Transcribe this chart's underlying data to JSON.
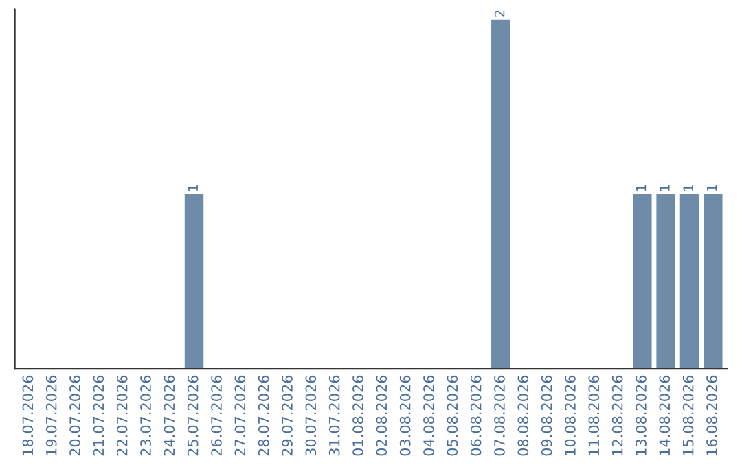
{
  "chart_data": {
    "type": "bar",
    "categories": [
      "18.07.2026",
      "19.07.2026",
      "20.07.2026",
      "21.07.2026",
      "22.07.2026",
      "23.07.2026",
      "24.07.2026",
      "25.07.2026",
      "26.07.2026",
      "27.07.2026",
      "28.07.2026",
      "29.07.2026",
      "30.07.2026",
      "31.07.2026",
      "01.08.2026",
      "02.08.2026",
      "03.08.2026",
      "04.08.2026",
      "05.08.2026",
      "06.08.2026",
      "07.08.2026",
      "08.08.2026",
      "09.08.2026",
      "10.08.2026",
      "11.08.2026",
      "12.08.2026",
      "13.08.2026",
      "14.08.2026",
      "15.08.2026",
      "16.08.2026"
    ],
    "values": [
      0,
      0,
      0,
      0,
      0,
      0,
      0,
      1,
      0,
      0,
      0,
      0,
      0,
      0,
      0,
      0,
      0,
      0,
      0,
      0,
      2,
      0,
      0,
      0,
      0,
      0,
      1,
      1,
      1,
      1
    ],
    "value_labels": [
      null,
      null,
      null,
      null,
      null,
      null,
      null,
      "1",
      null,
      null,
      null,
      null,
      null,
      null,
      null,
      null,
      null,
      null,
      null,
      null,
      "2",
      null,
      null,
      null,
      null,
      null,
      "1",
      "1",
      "1",
      "1"
    ],
    "color": "#6e8ca8",
    "tick_labels": "x",
    "grid": false
  }
}
